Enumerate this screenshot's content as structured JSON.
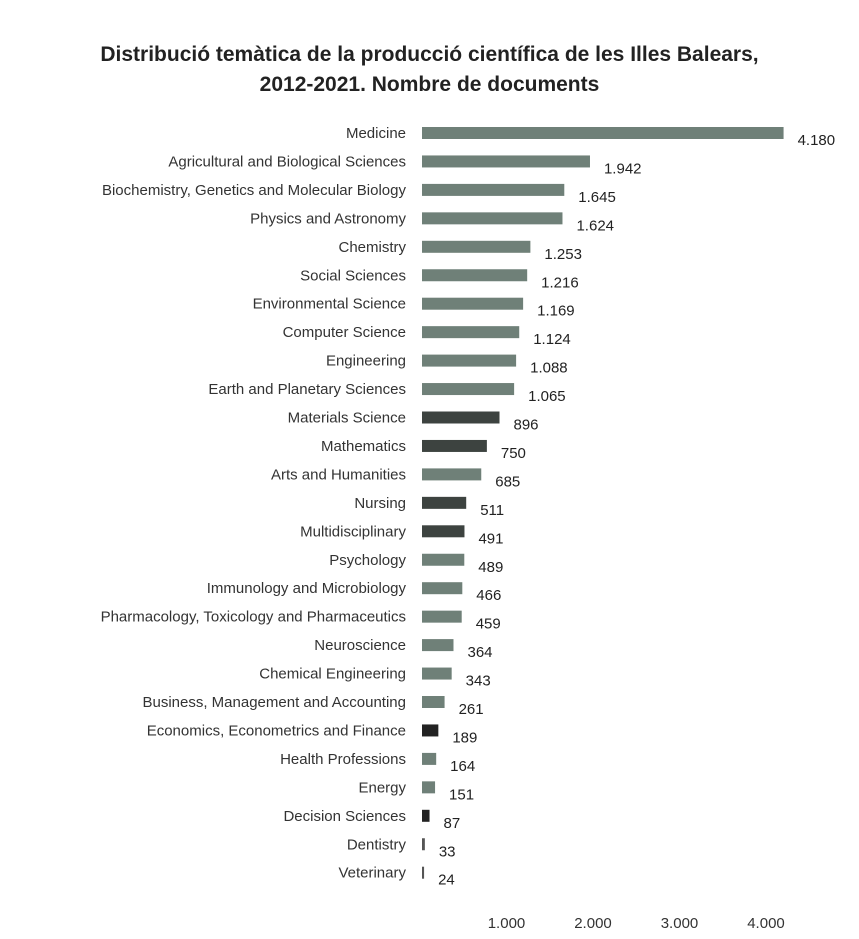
{
  "chart_data": {
    "type": "bar",
    "orientation": "horizontal",
    "title": "Distribució temàtica de la producció científica de les Illes Balears,",
    "subtitle": "2012-2021. Nombre de documents",
    "categories": [
      "Medicine",
      "Agricultural and Biological Sciences",
      "Biochemistry, Genetics and Molecular Biology",
      "Physics and Astronomy",
      "Chemistry",
      "Social Sciences",
      "Environmental Science",
      "Computer Science",
      "Engineering",
      "Earth and Planetary Sciences",
      "Materials Science",
      "Mathematics",
      "Arts and Humanities",
      "Nursing",
      "Multidisciplinary",
      "Psychology",
      "Immunology and Microbiology",
      "Pharmacology, Toxicology and Pharmaceutics",
      "Neuroscience",
      "Chemical Engineering",
      "Business, Management and Accounting",
      "Economics, Econometrics and Finance",
      "Health Professions",
      "Energy",
      "Decision Sciences",
      "Dentistry",
      "Veterinary"
    ],
    "values": [
      4180,
      1942,
      1645,
      1624,
      1253,
      1216,
      1169,
      1124,
      1088,
      1065,
      896,
      750,
      685,
      511,
      491,
      489,
      466,
      459,
      364,
      343,
      261,
      189,
      164,
      151,
      87,
      33,
      24
    ],
    "value_labels": [
      "4.180",
      "1.942",
      "1.645",
      "1.624",
      "1.253",
      "1.216",
      "1.169",
      "1.124",
      "1.088",
      "1.065",
      "896",
      "750",
      "685",
      "511",
      "491",
      "489",
      "466",
      "459",
      "364",
      "343",
      "261",
      "189",
      "164",
      "151",
      "87",
      "33",
      "24"
    ],
    "bar_colors": [
      "#6f8078",
      "#6f8078",
      "#6f8078",
      "#6f8078",
      "#6f8078",
      "#6f8078",
      "#6f8078",
      "#6f8078",
      "#6f8078",
      "#6f8078",
      "#3d4340",
      "#3d4340",
      "#6f8078",
      "#3d4340",
      "#3d4340",
      "#6f8078",
      "#6f8078",
      "#6f8078",
      "#6f8078",
      "#6f8078",
      "#6f8078",
      "#222222",
      "#6f8078",
      "#6f8078",
      "#222222",
      "#555555",
      "#555555"
    ],
    "x_ticks": [
      "1.000",
      "2.000",
      "3.000",
      "4.000"
    ],
    "x_tick_values": [
      1000,
      2000,
      3000,
      4000
    ],
    "xlim": [
      0,
      4200
    ],
    "grid": false,
    "legend": "none"
  }
}
